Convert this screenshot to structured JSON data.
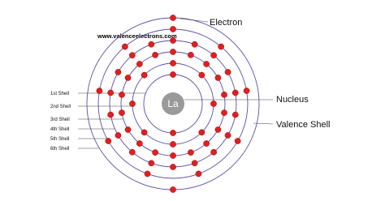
{
  "labels": {
    "electron": "Electron",
    "website": "www.valenceelectrons.com",
    "nucleus_symbol": "La",
    "nucleus": "Nucleus",
    "valence_shell": "Valence Shell",
    "shells": [
      "1st Shell",
      "2nd Shell",
      "3rd Shell",
      "4th Shell",
      "5th Shell",
      "6th Shell"
    ]
  }
}
